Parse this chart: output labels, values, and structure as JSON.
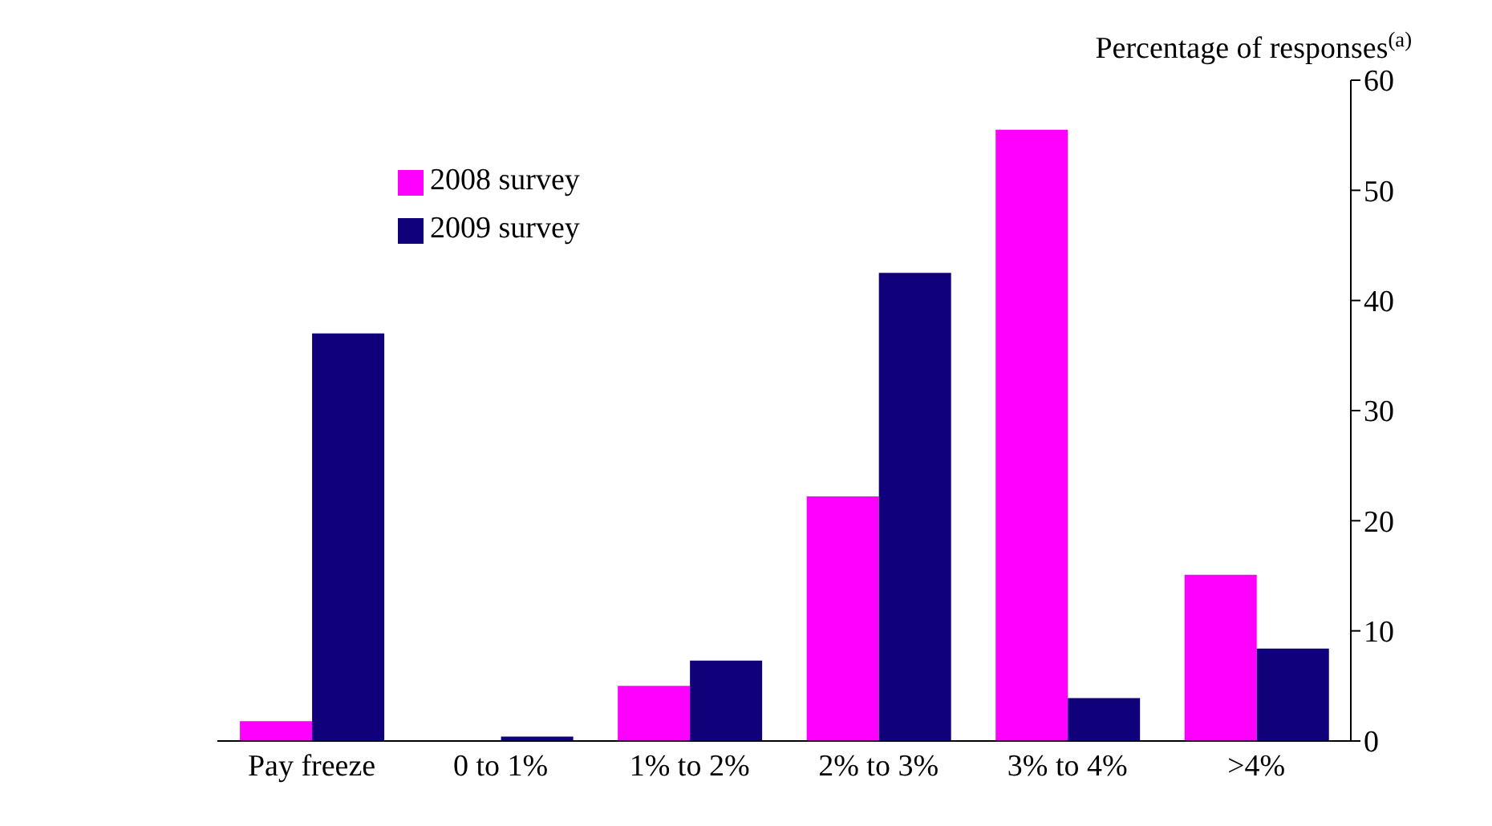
{
  "chart_data": {
    "type": "bar",
    "ylabel": "Percentage of responses$^{(a)}$",
    "categories": [
      "Pay freeze",
      "0 to 1%",
      "1% to 2%",
      "2% to 3%",
      "3% to 4%",
      ">4%"
    ],
    "series": [
      {
        "name": "2008 survey",
        "color": "#ff00ff",
        "values": [
          1.8,
          0,
          5,
          22.2,
          55.5,
          15.1
        ]
      },
      {
        "name": "2009 survey",
        "color": "#10007a",
        "values": [
          37,
          0.4,
          7.3,
          42.5,
          3.9,
          8.4
        ]
      }
    ],
    "ylim": [
      0,
      60
    ],
    "yticks": [
      0,
      10,
      20,
      30,
      40,
      50,
      60
    ],
    "grid": false,
    "legend": "top left"
  }
}
